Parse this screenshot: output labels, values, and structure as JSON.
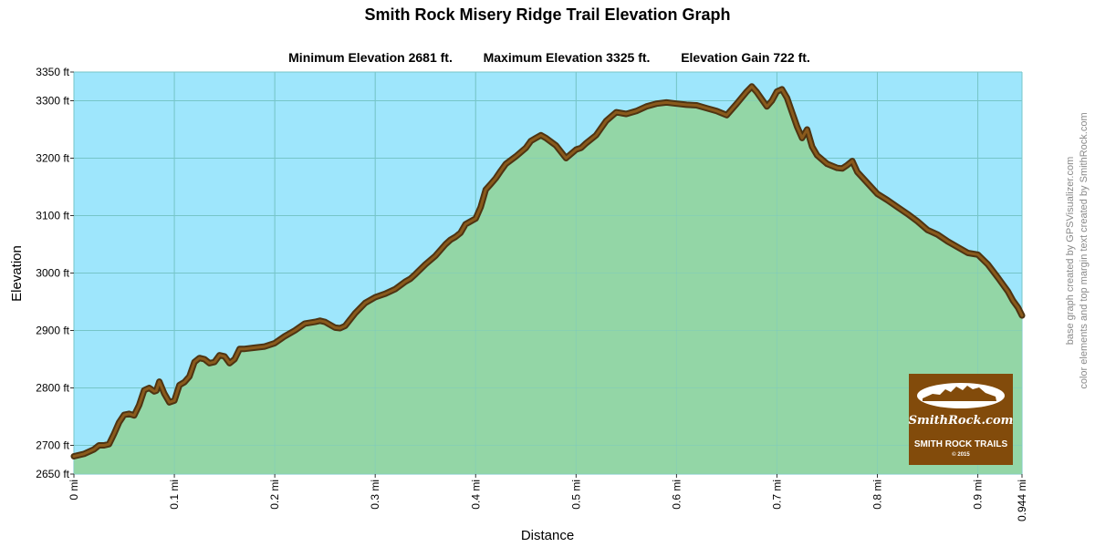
{
  "chart_data": {
    "type": "area",
    "title": "Smith Rock Misery Ridge Trail Elevation Graph",
    "stats": {
      "min_label": "Minimum Elevation  2681 ft.",
      "max_label": "Maximum Elevation 3325 ft.",
      "gain_label": "Elevation Gain 722 ft."
    },
    "xlabel": "Distance",
    "ylabel": "Elevation",
    "xlim": [
      0,
      0.944
    ],
    "ylim": [
      2650,
      3350
    ],
    "x_ticks": [
      {
        "value": 0,
        "label": "0 mi"
      },
      {
        "value": 0.1,
        "label": "0.1 mi"
      },
      {
        "value": 0.2,
        "label": "0.2 mi"
      },
      {
        "value": 0.3,
        "label": "0.3 mi"
      },
      {
        "value": 0.4,
        "label": "0.4 mi"
      },
      {
        "value": 0.5,
        "label": "0.5 mi"
      },
      {
        "value": 0.6,
        "label": "0.6 mi"
      },
      {
        "value": 0.7,
        "label": "0.7 mi"
      },
      {
        "value": 0.8,
        "label": "0.8 mi"
      },
      {
        "value": 0.9,
        "label": "0.9 mi"
      },
      {
        "value": 0.944,
        "label": "0.944 mi"
      }
    ],
    "y_ticks": [
      {
        "value": 2650,
        "label": "2650 ft"
      },
      {
        "value": 2700,
        "label": "2700 ft"
      },
      {
        "value": 2800,
        "label": "2800 ft"
      },
      {
        "value": 2900,
        "label": "2900 ft"
      },
      {
        "value": 3000,
        "label": "3000 ft"
      },
      {
        "value": 3100,
        "label": "3100 ft"
      },
      {
        "value": 3200,
        "label": "3200 ft"
      },
      {
        "value": 3300,
        "label": "3300 ft"
      },
      {
        "value": 3350,
        "label": "3350 ft"
      }
    ],
    "grid": true,
    "series": [
      {
        "x": [
          0,
          0.01,
          0.02,
          0.025,
          0.03,
          0.035,
          0.04,
          0.045,
          0.05,
          0.055,
          0.06,
          0.065,
          0.07,
          0.075,
          0.08,
          0.082,
          0.085,
          0.09,
          0.095,
          0.1,
          0.105,
          0.11,
          0.115,
          0.12,
          0.125,
          0.13,
          0.135,
          0.14,
          0.145,
          0.15,
          0.155,
          0.16,
          0.165,
          0.17,
          0.18,
          0.19,
          0.2,
          0.21,
          0.22,
          0.23,
          0.24,
          0.245,
          0.25,
          0.26,
          0.265,
          0.27,
          0.28,
          0.29,
          0.3,
          0.31,
          0.32,
          0.33,
          0.335,
          0.34,
          0.35,
          0.36,
          0.37,
          0.375,
          0.38,
          0.385,
          0.39,
          0.4,
          0.405,
          0.41,
          0.415,
          0.42,
          0.425,
          0.43,
          0.44,
          0.45,
          0.455,
          0.46,
          0.465,
          0.47,
          0.48,
          0.49,
          0.5,
          0.505,
          0.51,
          0.52,
          0.53,
          0.54,
          0.55,
          0.56,
          0.57,
          0.58,
          0.59,
          0.6,
          0.61,
          0.62,
          0.63,
          0.64,
          0.65,
          0.66,
          0.67,
          0.675,
          0.68,
          0.69,
          0.695,
          0.7,
          0.705,
          0.71,
          0.715,
          0.72,
          0.725,
          0.73,
          0.735,
          0.74,
          0.75,
          0.76,
          0.765,
          0.77,
          0.775,
          0.78,
          0.79,
          0.8,
          0.81,
          0.82,
          0.83,
          0.84,
          0.85,
          0.86,
          0.87,
          0.88,
          0.89,
          0.9,
          0.91,
          0.92,
          0.93,
          0.935,
          0.94,
          0.944
        ],
        "y": [
          2681,
          2685,
          2693,
          2700,
          2700,
          2702,
          2720,
          2740,
          2753,
          2755,
          2752,
          2770,
          2796,
          2800,
          2794,
          2795,
          2811,
          2790,
          2775,
          2778,
          2805,
          2810,
          2820,
          2845,
          2852,
          2850,
          2843,
          2845,
          2857,
          2855,
          2843,
          2850,
          2868,
          2868,
          2870,
          2872,
          2878,
          2890,
          2900,
          2912,
          2915,
          2917,
          2915,
          2905,
          2904,
          2908,
          2930,
          2948,
          2958,
          2964,
          2972,
          2985,
          2990,
          2998,
          3015,
          3030,
          3050,
          3058,
          3063,
          3070,
          3085,
          3095,
          3115,
          3145,
          3155,
          3165,
          3178,
          3190,
          3203,
          3218,
          3230,
          3235,
          3240,
          3235,
          3222,
          3200,
          3215,
          3218,
          3226,
          3240,
          3265,
          3280,
          3277,
          3282,
          3290,
          3295,
          3297,
          3295,
          3293,
          3292,
          3287,
          3282,
          3275,
          3295,
          3316,
          3325,
          3315,
          3290,
          3300,
          3316,
          3320,
          3305,
          3280,
          3255,
          3235,
          3250,
          3220,
          3205,
          3190,
          3183,
          3182,
          3188,
          3195,
          3176,
          3157,
          3138,
          3127,
          3115,
          3103,
          3090,
          3075,
          3067,
          3055,
          3045,
          3035,
          3032,
          3015,
          2992,
          2968,
          2952,
          2940,
          2926
        ]
      }
    ],
    "colors": {
      "sky": "#9ee6fc",
      "fill": "#93d6a6",
      "line_outer": "#4e3412",
      "line_inner": "#8a5a1c",
      "grid": "#76c5c8",
      "logo_bg": "#824b0b"
    }
  },
  "credits": {
    "line1": "base graph created by GPSVisualizer.com",
    "line2": "color elements and top margin text created by SmithRock.com"
  },
  "logo": {
    "brand": "SmithRock.com",
    "tagline": "SMITH ROCK TRAILS",
    "copyright": "© 2015"
  }
}
